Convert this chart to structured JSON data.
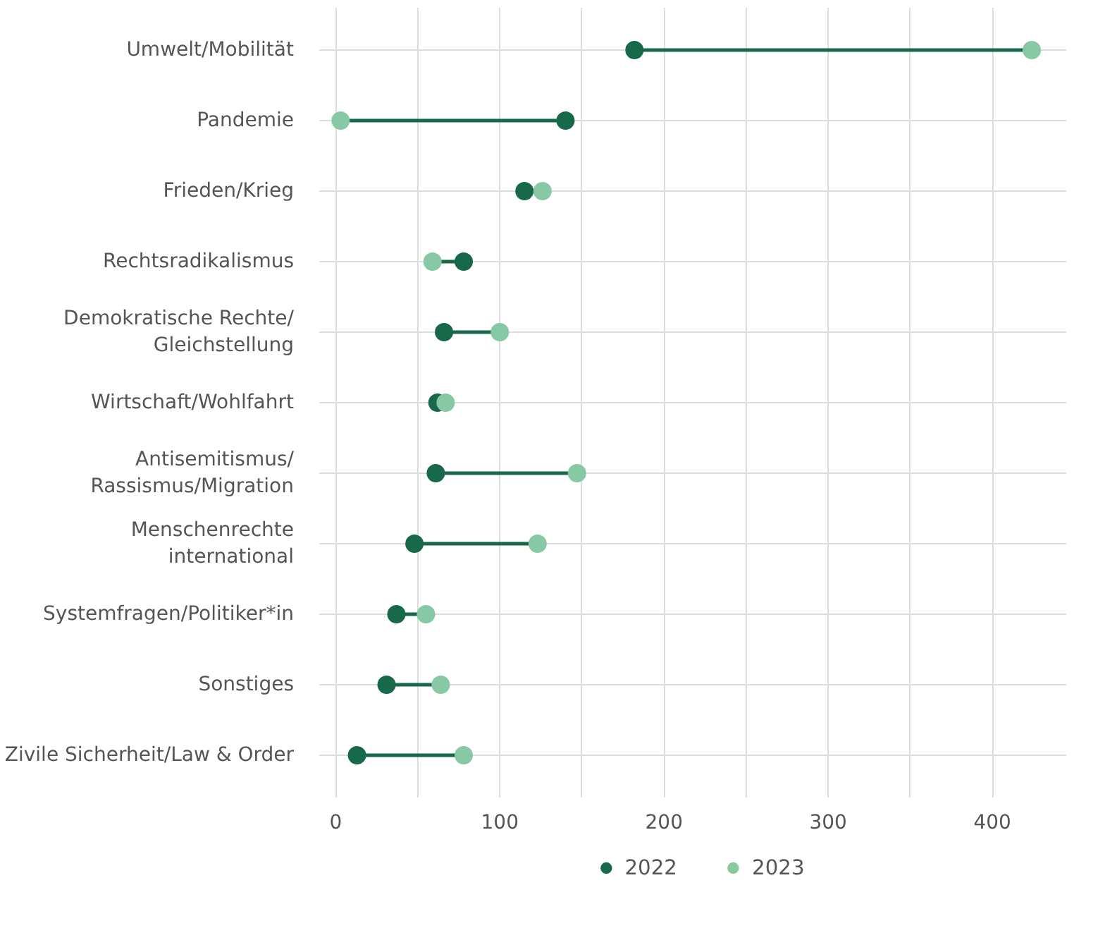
{
  "chart_data": {
    "type": "scatter",
    "orientation": "horizontal",
    "categories": [
      "Umwelt/Mobilität",
      "Pandemie",
      "Frieden/Krieg",
      "Rechtsradikalismus",
      "Demokratische Rechte/\nGleichstellung",
      "Wirtschaft/Wohlfahrt",
      "Antisemitismus/\nRassismus/Migration",
      "Menschenrechte\ninternational",
      "Systemfragen/Politiker*in",
      "Sonstiges",
      "Zivile Sicherheit/Law & Order"
    ],
    "series": [
      {
        "name": "2022",
        "color": "#17694a",
        "values": [
          182,
          140,
          115,
          78,
          66,
          62,
          61,
          48,
          37,
          31,
          13
        ]
      },
      {
        "name": "2023",
        "color": "#86c9a4",
        "values": [
          424,
          3,
          126,
          59,
          100,
          67,
          147,
          123,
          55,
          64,
          78
        ]
      }
    ],
    "xlim": [
      -10,
      445
    ],
    "xticks": [
      0,
      {
        "value": 50,
        "label": null
      },
      100,
      {
        "value": 150,
        "label": null
      },
      200,
      {
        "value": 250,
        "label": null
      },
      300,
      {
        "value": 350,
        "label": null
      },
      400
    ],
    "grid": true,
    "legend": "bottom",
    "marker": "circle"
  }
}
